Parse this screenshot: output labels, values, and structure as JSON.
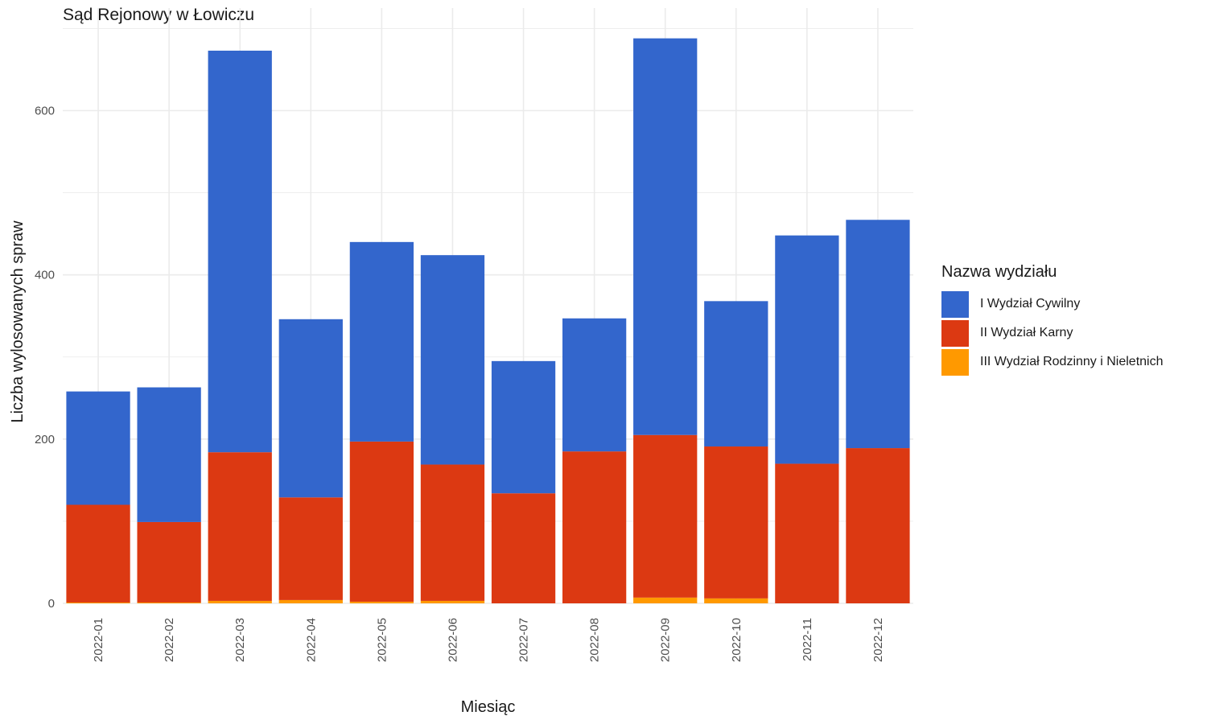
{
  "chart_data": {
    "type": "bar",
    "stacked": true,
    "title": "Sąd Rejonowy w Łowiczu",
    "xlabel": "Miesiąc",
    "ylabel": "Liczba wylosowanych spraw",
    "ylim": [
      0,
      700
    ],
    "yticks": [
      0,
      200,
      400,
      600
    ],
    "grid": true,
    "legend_position": "right",
    "legend_title": "Nazwa wydziału",
    "categories": [
      "2022-01",
      "2022-02",
      "2022-03",
      "2022-04",
      "2022-05",
      "2022-06",
      "2022-07",
      "2022-08",
      "2022-09",
      "2022-10",
      "2022-11",
      "2022-12"
    ],
    "series": [
      {
        "name": "III Wydział Rodzinny i Nieletnich",
        "color": "#FF9900",
        "values": [
          1,
          1,
          3,
          4,
          2,
          3,
          0,
          0,
          7,
          6,
          0,
          0
        ]
      },
      {
        "name": "II Wydział Karny",
        "color": "#DC3912",
        "values": [
          119,
          98,
          181,
          125,
          195,
          166,
          134,
          185,
          198,
          185,
          170,
          189
        ]
      },
      {
        "name": "I Wydział Cywilny",
        "color": "#3366CC",
        "values": [
          138,
          164,
          489,
          217,
          243,
          255,
          161,
          162,
          483,
          177,
          278,
          278
        ]
      }
    ]
  }
}
